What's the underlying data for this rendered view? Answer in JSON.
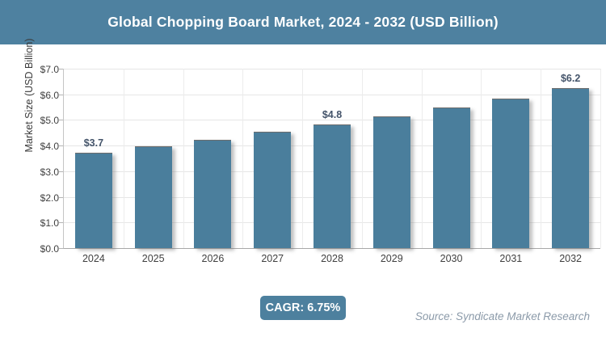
{
  "header": {
    "title": "Global Chopping Board Market, 2024 - 2032 (USD Billion)"
  },
  "chart_data": {
    "type": "bar",
    "title": "Global Chopping Board Market, 2024 - 2032 (USD Billion)",
    "categories": [
      "2024",
      "2025",
      "2026",
      "2027",
      "2028",
      "2029",
      "2030",
      "2031",
      "2032"
    ],
    "values": [
      3.7,
      3.95,
      4.2,
      4.5,
      4.8,
      5.1,
      5.45,
      5.8,
      6.2
    ],
    "data_labels": [
      "$3.7",
      "",
      "",
      "",
      "$4.8",
      "",
      "",
      "",
      "$6.2"
    ],
    "xlabel": "",
    "ylabel": "Market Size (USD Billion)",
    "ylim": [
      0,
      7
    ],
    "ytick_labels": [
      "$0.0",
      "$1.0",
      "$2.0",
      "$3.0",
      "$4.0",
      "$5.0",
      "$6.0",
      "$7.0"
    ],
    "grid": true,
    "legend": false,
    "bar_color": "#4a7e9c"
  },
  "footer": {
    "cagr_label": "CAGR: 6.75%",
    "source_label": "Source: Syndicate Market Research"
  },
  "colors": {
    "accent": "#4e81a0",
    "bar": "#4a7e9c",
    "data_label": "#44546a",
    "tick_text": "#3f3f3f",
    "grid": "#e6e6e6",
    "source_text": "#8b9aa9",
    "title_text": "#ffffff"
  }
}
